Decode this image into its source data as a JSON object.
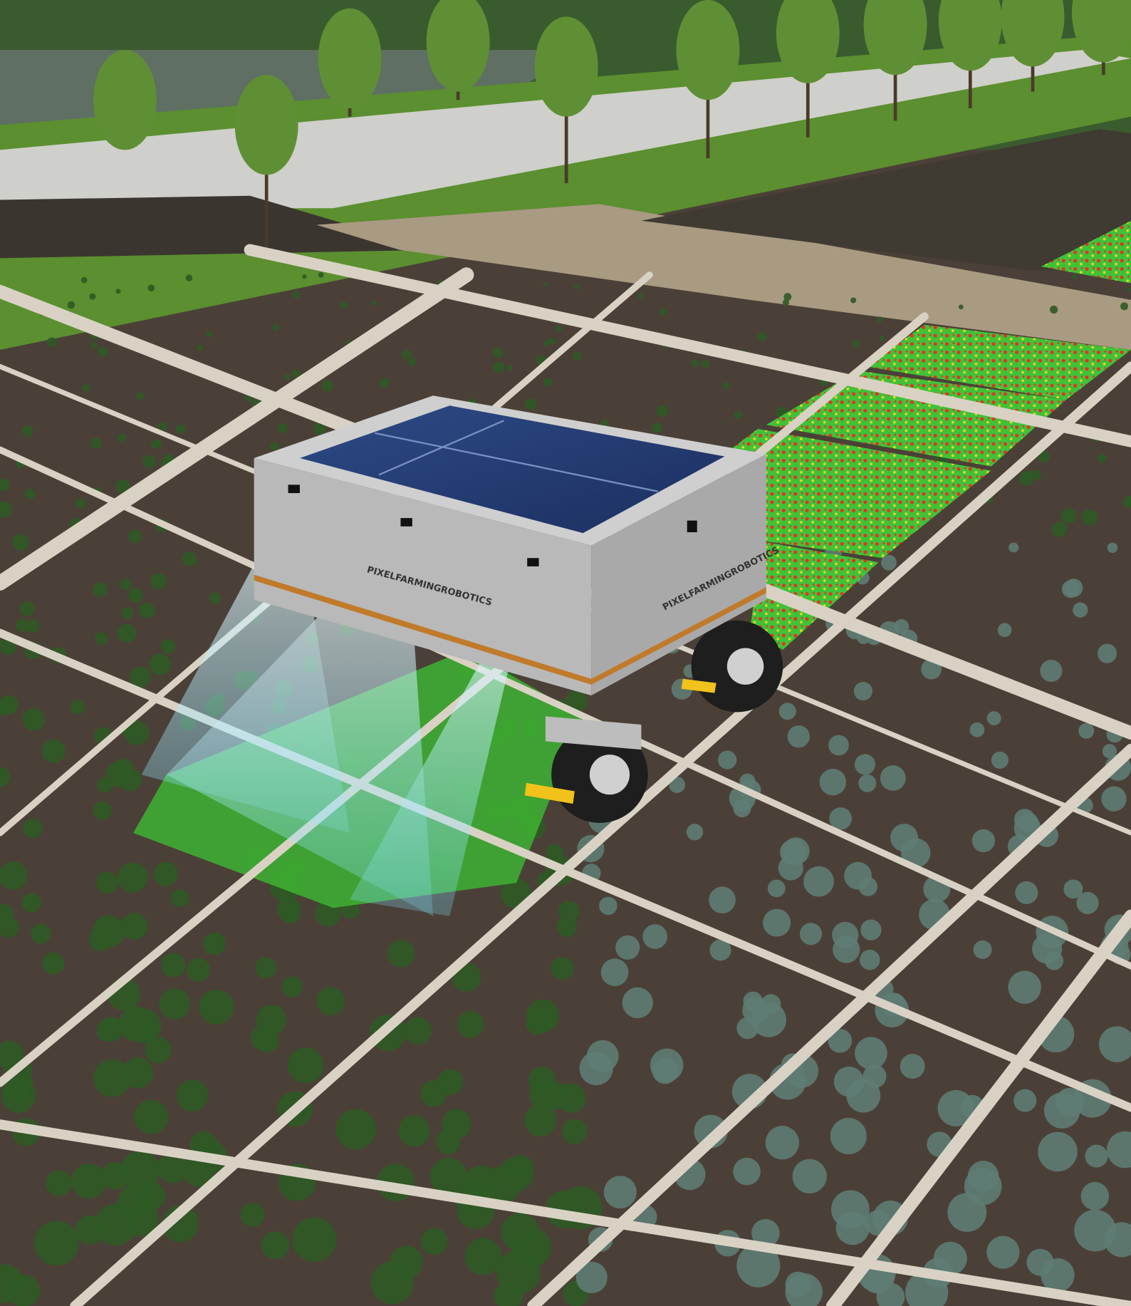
{
  "robot": {
    "brand_front": "PIXELFARMINGROBOTICS",
    "brand_side": "PIXELFARMINGROBOTICS"
  }
}
